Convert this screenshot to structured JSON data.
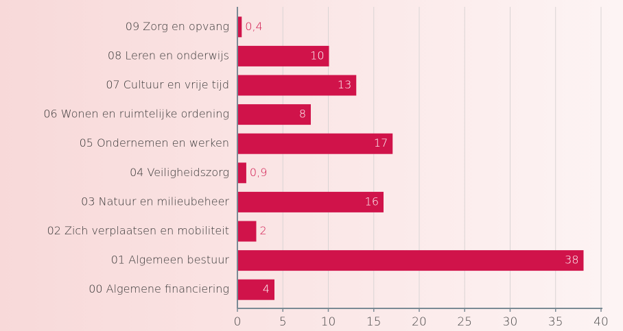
{
  "chart_data": {
    "type": "hbar",
    "categories": [
      "09 Zorg en opvang",
      "08 Leren en onderwijs",
      "07 Cultuur en vrije tijd",
      "06 Wonen en ruimtelijke ordening",
      "05 Ondernemen en werken",
      "04 Veiligheidszorg",
      "03 Natuur en milieubeheer",
      "02 Zich verplaatsen en mobiliteit",
      "01 Algemeen bestuur",
      "00 Algemene financiering"
    ],
    "values": [
      0.4,
      10,
      13,
      8,
      17,
      0.9,
      16,
      2,
      38,
      4
    ],
    "value_labels": [
      "0,4",
      "10",
      "13",
      "8",
      "17",
      "0,9",
      "16",
      "2",
      "38",
      "4"
    ],
    "color": "#d0134a",
    "xlim": [
      0,
      40
    ],
    "xticks": [
      0,
      5,
      10,
      15,
      20,
      25,
      30,
      35,
      40
    ],
    "grid": true
  }
}
